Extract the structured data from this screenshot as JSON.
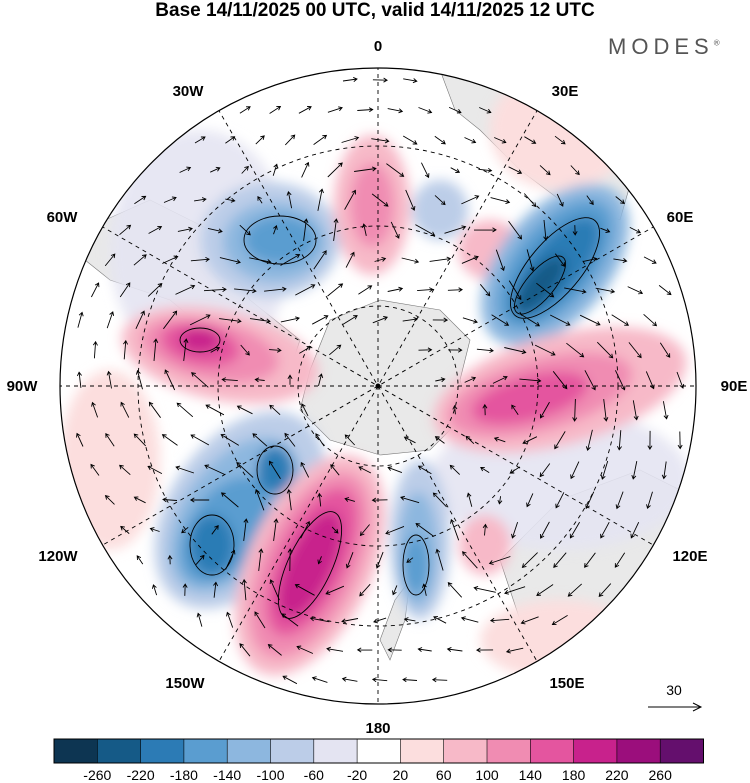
{
  "title": "Base 14/11/2025 00 UTC, valid 14/11/2025 12 UTC",
  "brand": "MODES",
  "brand_mark": "®",
  "longitude_labels": {
    "lon_0": "0",
    "lon_30e": "30E",
    "lon_60e": "60E",
    "lon_90e": "90E",
    "lon_120e": "120E",
    "lon_150e": "150E",
    "lon_180": "180",
    "lon_150w": "150W",
    "lon_120w": "120W",
    "lon_90w": "90W",
    "lon_60w": "60W",
    "lon_30w": "30W"
  },
  "vector_reference": {
    "value": "30"
  },
  "colorbar": {
    "ticks": [
      "-260",
      "-220",
      "-180",
      "-140",
      "-100",
      "-60",
      "-20",
      "20",
      "60",
      "100",
      "140",
      "180",
      "220",
      "260"
    ],
    "colors": [
      "#0d3552",
      "#155a87",
      "#2c7bb5",
      "#5a9dd0",
      "#8db7df",
      "#bccde8",
      "#e4e4f2",
      "#ffffff",
      "#fcdede",
      "#f7b9c8",
      "#f08cb2",
      "#e4559f",
      "#c8228c",
      "#9b0e7c",
      "#640f6d"
    ]
  }
}
